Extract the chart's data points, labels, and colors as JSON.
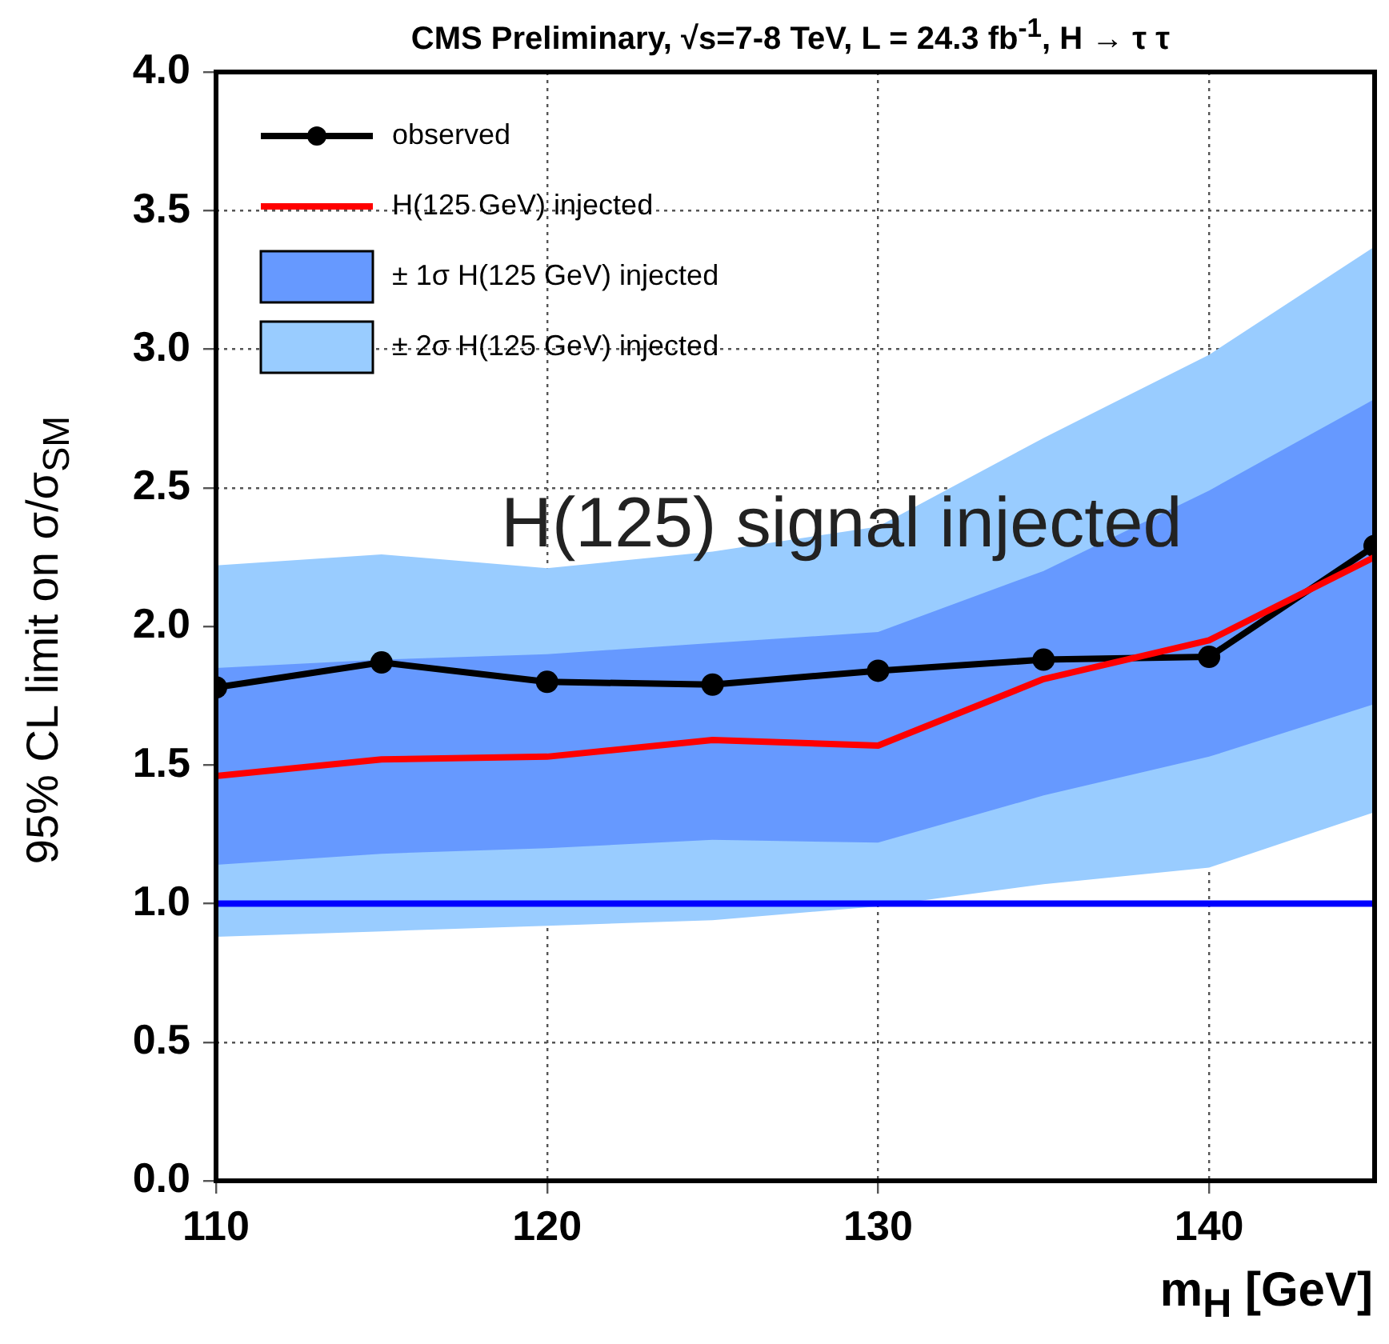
{
  "chart_data": {
    "type": "line",
    "title": "CMS Preliminary, √s=7-8 TeV, L = 24.3 fb$^{-1}$, H → τ τ",
    "xlabel": "m$_{H}$ [GeV]",
    "ylabel": "95% CL limit on  σ/σ$_{SM}$",
    "x": [
      110,
      115,
      120,
      125,
      130,
      135,
      140,
      145
    ],
    "xlim": [
      110,
      145
    ],
    "xticks": [
      110,
      120,
      130,
      140
    ],
    "ylim": [
      0,
      4
    ],
    "yticks": [
      {
        "value": 0,
        "label": "0.0"
      },
      {
        "value": 0.5,
        "label": "0.5"
      },
      {
        "value": 1,
        "label": "1.0"
      },
      {
        "value": 1.5,
        "label": "1.5"
      },
      {
        "value": 2,
        "label": "2.0"
      },
      {
        "value": 2.5,
        "label": "2.5"
      },
      {
        "value": 3,
        "label": "3.0"
      },
      {
        "value": 3.5,
        "label": "3.5"
      },
      {
        "value": 4,
        "label": "4.0"
      }
    ],
    "grid": true,
    "legend": "top left",
    "annotations": [
      "H(125) signal injected"
    ],
    "ref_lines": [
      {
        "axis": "y",
        "value": 1,
        "color": "#0000ff"
      }
    ],
    "series": [
      {
        "name": "observed",
        "type": "line",
        "color": "#000000",
        "marker": "circle",
        "values": [
          1.78,
          1.87,
          1.8,
          1.79,
          1.84,
          1.88,
          1.89,
          2.29
        ]
      },
      {
        "name": "H(125 GeV) injected",
        "type": "line",
        "color": "#ff0000",
        "marker": "none",
        "values": [
          1.46,
          1.52,
          1.53,
          1.59,
          1.57,
          1.81,
          1.95,
          2.25
        ]
      },
      {
        "name": "± 1σ H(125 GeV) injected",
        "type": "area",
        "color": "#6699ff",
        "values": [
          null,
          null,
          null,
          null,
          null,
          null,
          null,
          null
        ],
        "lower": [
          1.14,
          1.18,
          1.2,
          1.23,
          1.22,
          1.39,
          1.53,
          1.72
        ],
        "upper": [
          1.85,
          1.88,
          1.9,
          1.94,
          1.98,
          2.2,
          2.49,
          2.82
        ]
      },
      {
        "name": "± 2σ H(125 GeV) injected",
        "type": "area",
        "color": "#99ccff",
        "values": [
          null,
          null,
          null,
          null,
          null,
          null,
          null,
          null
        ],
        "lower": [
          0.88,
          0.9,
          0.92,
          0.94,
          0.99,
          1.07,
          1.13,
          1.33
        ],
        "upper": [
          2.22,
          2.26,
          2.21,
          2.27,
          2.36,
          2.68,
          2.98,
          3.37
        ]
      }
    ]
  }
}
